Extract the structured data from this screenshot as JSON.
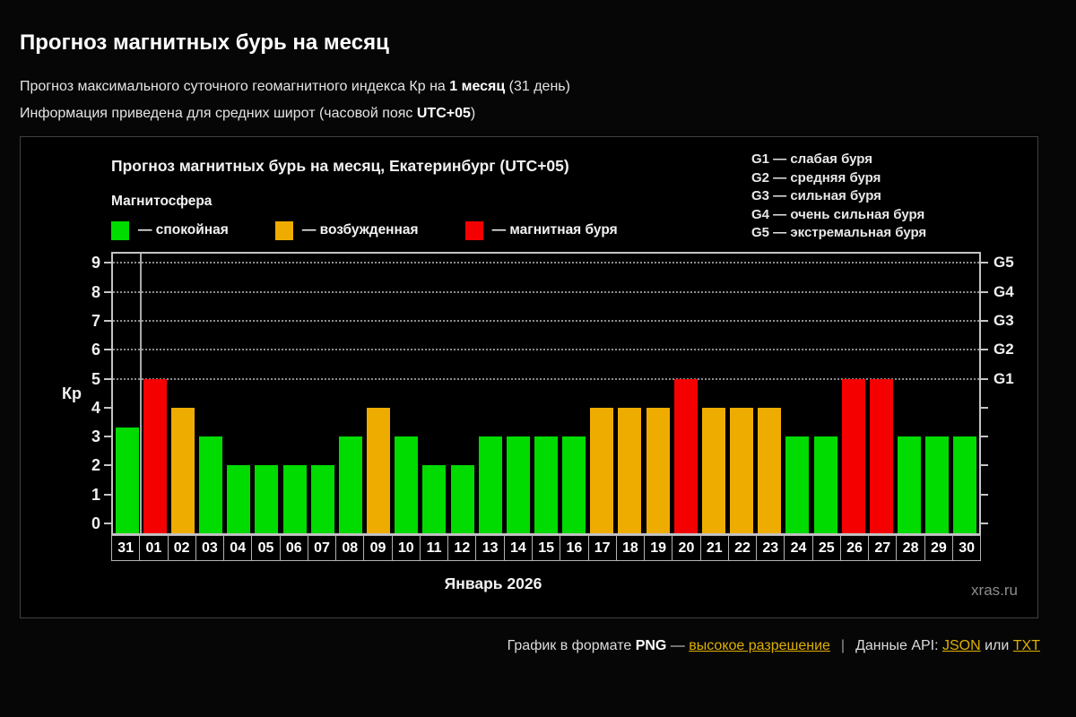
{
  "page": {
    "title": "Прогноз магнитных бурь на месяц",
    "subtitle_prefix": "Прогноз максимального суточного геомагнитного индекса Кр на ",
    "subtitle_bold": "1 месяц",
    "subtitle_suffix": " (31 день)",
    "info_prefix": "Информация приведена для средних широт (часовой пояс ",
    "info_bold": "UTC+05",
    "info_suffix": ")"
  },
  "chart": {
    "title": "Прогноз магнитных бурь на месяц, Екатеринбург (UTC+05)",
    "magnetosphere_label": "Магнитосфера",
    "legend": [
      {
        "label": "— спокойная",
        "color": "#00db00"
      },
      {
        "label": "— возбужденная",
        "color": "#efac00"
      },
      {
        "label": "— магнитная буря",
        "color": "#f40000"
      }
    ],
    "g_scale": [
      {
        "code": "G1",
        "desc": "— слабая буря"
      },
      {
        "code": "G2",
        "desc": "— средняя буря"
      },
      {
        "code": "G3",
        "desc": "— сильная буря"
      },
      {
        "code": "G4",
        "desc": "— очень сильная буря"
      },
      {
        "code": "G5",
        "desc": "— экстремальная буря"
      }
    ],
    "y_axis_label": "Кр",
    "month_label": "Январь 2026",
    "watermark": "xras.ru"
  },
  "chart_data": {
    "type": "bar",
    "title": "Прогноз магнитных бурь на месяц, Екатеринбург (UTC+05)",
    "xlabel": "Январь 2026",
    "ylabel": "Кр",
    "categories": [
      "31",
      "01",
      "02",
      "03",
      "04",
      "05",
      "06",
      "07",
      "08",
      "09",
      "10",
      "11",
      "12",
      "13",
      "14",
      "15",
      "16",
      "17",
      "18",
      "19",
      "20",
      "21",
      "22",
      "23",
      "24",
      "25",
      "26",
      "27",
      "28",
      "29",
      "30"
    ],
    "values": [
      3.3,
      5,
      4,
      3,
      2,
      2,
      2,
      2,
      3,
      4,
      3,
      2,
      2,
      3,
      3,
      3,
      3,
      4,
      4,
      4,
      5,
      4,
      4,
      4,
      3,
      3,
      5,
      5,
      3,
      3,
      3
    ],
    "ylim": [
      0,
      9.5
    ],
    "yticks": [
      0,
      1,
      2,
      3,
      4,
      5,
      6,
      7,
      8,
      9
    ],
    "grid_levels": [
      5,
      6,
      7,
      8,
      9
    ],
    "grid_style": "horizontal dotted at G-storm thresholds",
    "right_axis": [
      {
        "kp": 5,
        "label": "G1"
      },
      {
        "kp": 6,
        "label": "G2"
      },
      {
        "kp": 7,
        "label": "G3"
      },
      {
        "kp": 8,
        "label": "G4"
      },
      {
        "kp": 9,
        "label": "G5"
      }
    ],
    "month_boundary_after_index": 0,
    "color_rules": {
      "storm_min_kp": 5,
      "excited_min_kp": 4
    },
    "palette": {
      "quiet": "#00db00",
      "excited": "#efac00",
      "storm": "#f40000"
    },
    "legend_position": "top-left"
  },
  "footer": {
    "text1": "График в формате ",
    "png_bold": "PNG",
    "dash": " — ",
    "link_hires": "высокое разрешение",
    "separator": "|",
    "api_label": "Данные API: ",
    "link_json": "JSON",
    "or_text": " или ",
    "link_txt": "TXT"
  }
}
